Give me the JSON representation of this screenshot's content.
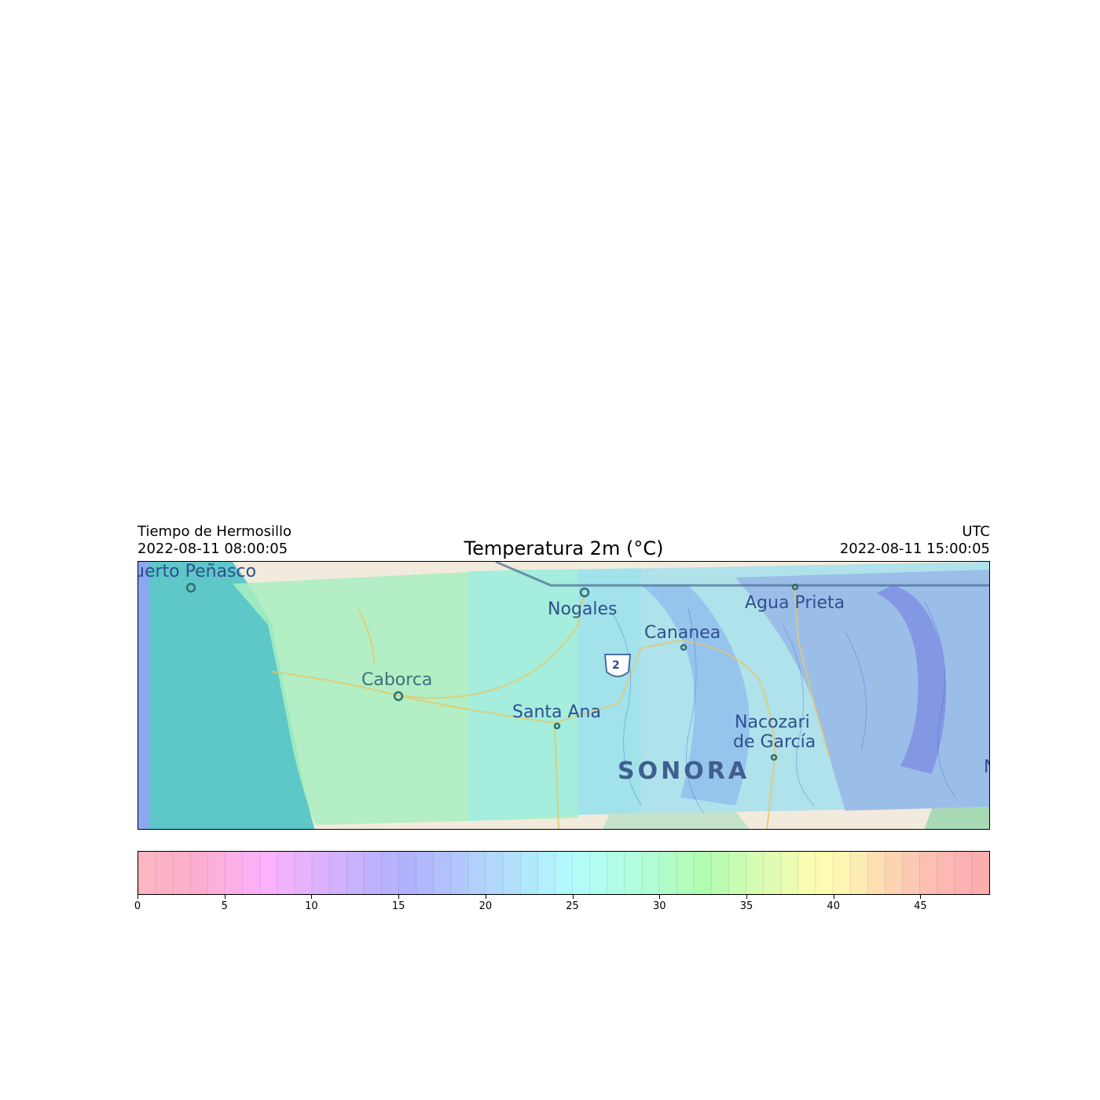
{
  "header": {
    "left_line1": "Tiempo de Hermosillo",
    "left_line2": "2022-08-11 08:00:05",
    "right_line1": "UTC",
    "right_line2": "2022-08-11 15:00:05",
    "title": "Temperatura 2m (°C)"
  },
  "map": {
    "labels": {
      "puerto_penasco": "uerto Peñasco",
      "nogales": "Nogales",
      "agua_prieta": "Agua Prieta",
      "cananea": "Cananea",
      "caborca": "Caborca",
      "santa_ana": "Santa Ana",
      "nacozari_1": "Nacozari",
      "nacozari_2": "de García",
      "sonora": "SONORA",
      "highway_shield": "2",
      "edge_letter": "N"
    },
    "colors": {
      "sea": "#5ec8c8",
      "land": "#f2ebdd",
      "warm_overlay": "#a8eec0",
      "mid_overlay": "#9fe8e0",
      "cool_overlay": "#9ec8f0",
      "cold_overlay": "#8a9ee8"
    }
  },
  "colorbar": {
    "min": 0,
    "max": 49,
    "tick_labels": [
      "0",
      "5",
      "10",
      "15",
      "20",
      "25",
      "30",
      "35",
      "40",
      "45"
    ],
    "tick_values": [
      0,
      5,
      10,
      15,
      20,
      25,
      30,
      35,
      40,
      45
    ],
    "colors": [
      "#fcb6c2",
      "#fcb2c6",
      "#fcb0ca",
      "#fcaed0",
      "#fcb0dc",
      "#fcb0e8",
      "#fcb0f4",
      "#fab2fc",
      "#f0b2fc",
      "#e6b2fc",
      "#dcb2fc",
      "#d2b2fc",
      "#c8b2fc",
      "#beb2fc",
      "#b8b2fc",
      "#b2b2fc",
      "#b2b8fc",
      "#b2c0fc",
      "#b2c8fc",
      "#b2d0fc",
      "#b2d8fc",
      "#b2e0fc",
      "#b2e8fc",
      "#b2f0fc",
      "#b2f8fc",
      "#b2fcf8",
      "#b2fcf0",
      "#b2fce8",
      "#b2fce0",
      "#b2fcd4",
      "#b2fcc8",
      "#b2fcbc",
      "#b2fcb2",
      "#bcfcb2",
      "#c8fcb2",
      "#d4fcb2",
      "#e0fcb2",
      "#ecfcb2",
      "#f8fcb2",
      "#fcfcb2",
      "#fcf6b2",
      "#fcecb2",
      "#fce0b2",
      "#fcd4b2",
      "#fccab2",
      "#fcc0b2",
      "#fcb8b2",
      "#fcb2b2",
      "#fcaeae"
    ]
  }
}
